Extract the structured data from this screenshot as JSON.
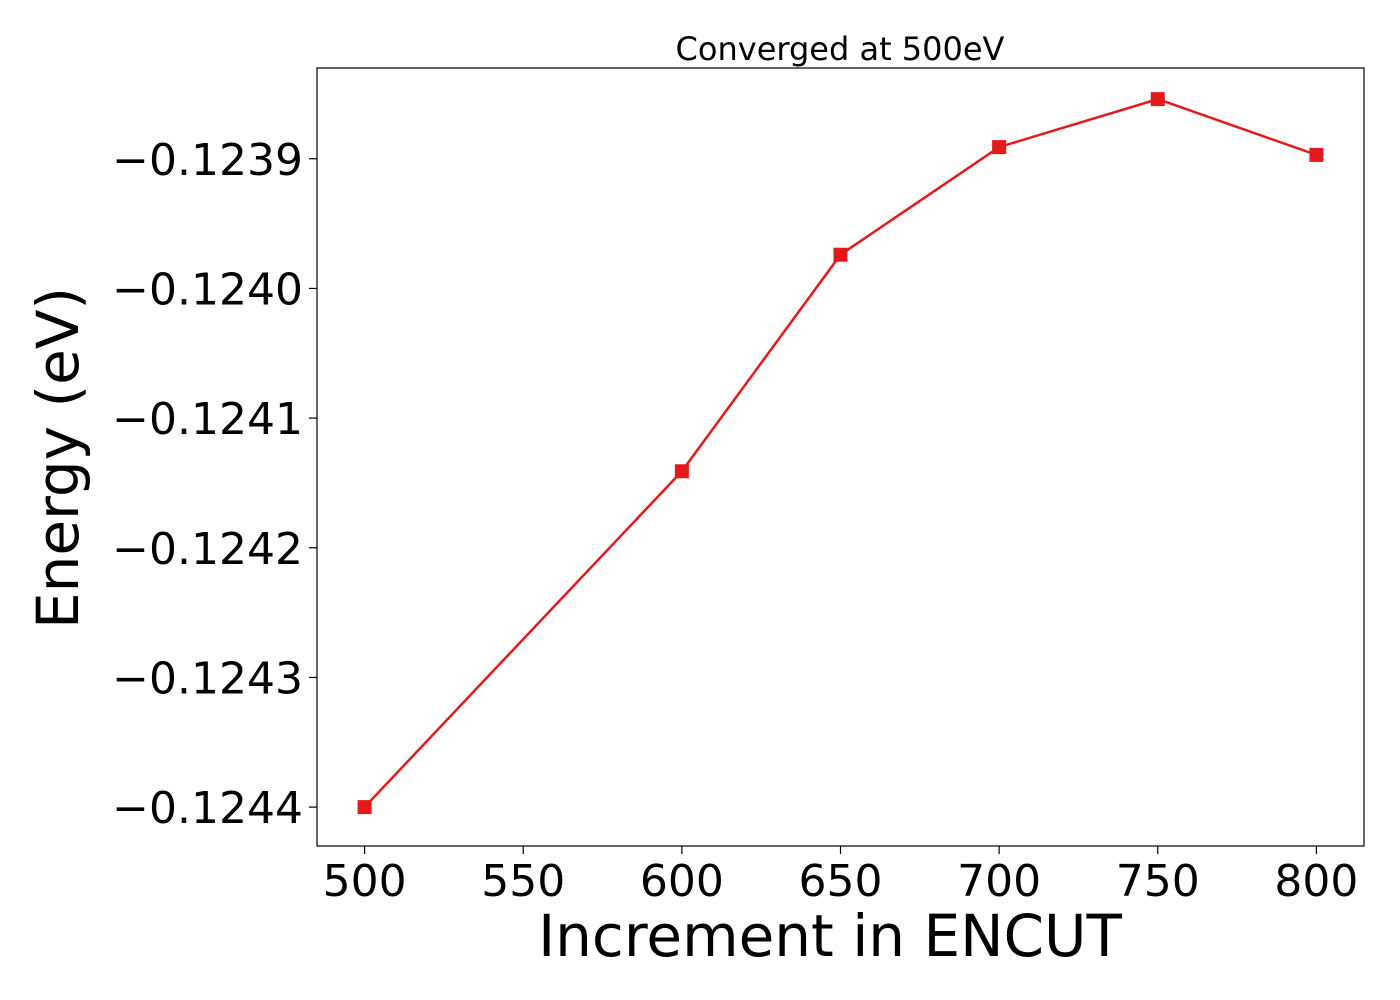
{
  "chart_data": {
    "type": "line",
    "title": "Converged at 500eV",
    "xlabel": "Increment in ENCUT",
    "ylabel": "Energy (eV)",
    "xlim": [
      485,
      815
    ],
    "ylim": [
      -0.12443,
      -0.12383
    ],
    "xticks": [
      500,
      550,
      600,
      650,
      700,
      750,
      800
    ],
    "xtick_labels": [
      "500",
      "550",
      "600",
      "650",
      "700",
      "750",
      "800"
    ],
    "yticks": [
      -0.1244,
      -0.1243,
      -0.1242,
      -0.1241,
      -0.124,
      -0.1239
    ],
    "ytick_labels": [
      "−0.1244",
      "−0.1243",
      "−0.1242",
      "−0.1241",
      "−0.1240",
      "−0.1239"
    ],
    "grid": false,
    "series": [
      {
        "color": "#e31a1c",
        "marker": "square",
        "x": [
          500,
          600,
          650,
          700,
          750,
          800
        ],
        "y": [
          -0.1244,
          -0.124141,
          -0.123974,
          -0.123891,
          -0.123854,
          -0.123897
        ]
      }
    ]
  }
}
